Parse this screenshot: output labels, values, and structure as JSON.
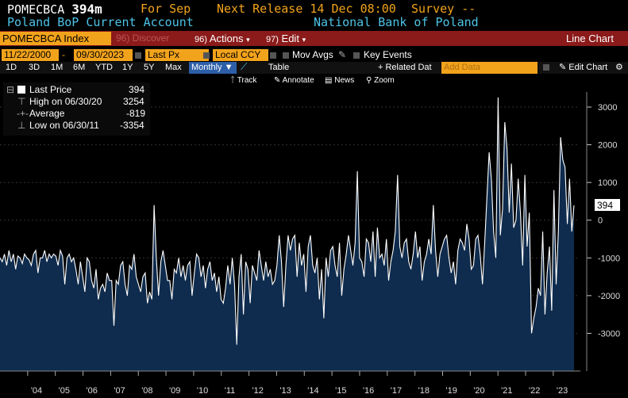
{
  "header": {
    "ticker": "POMECBCA",
    "value": "394m",
    "for_label": "For Sep",
    "next_release": "Next Release 14 Dec 08:00",
    "survey": "Survey --",
    "title": "Poland BoP Current Account",
    "source": "National Bank of Poland"
  },
  "toolbar": {
    "security": "POMECBCA Index",
    "discover": "96) Discover",
    "actions_num": "96)",
    "actions": "Actions",
    "edit_num": "97)",
    "edit": "Edit",
    "chart_type": "Line Chart"
  },
  "range": {
    "start": "11/22/2000",
    "end": "09/30/2023",
    "field": "Last Px",
    "currency": "Local CCY",
    "mov_avgs": "Mov Avgs",
    "key_events": "Key Events"
  },
  "periods": [
    "1D",
    "3D",
    "1M",
    "6M",
    "YTD",
    "1Y",
    "5Y",
    "Max"
  ],
  "frequency": "Monthly",
  "table_label": "Table",
  "related_data": "+ Related Dat",
  "add_data_placeholder": "Add Data",
  "edit_chart": "Edit Chart",
  "tools": {
    "track": "Track",
    "annotate": "Annotate",
    "news": "News",
    "zoom": "Zoom"
  },
  "legend": {
    "last_label": "Last Price",
    "last_value": "394",
    "high_label": "High on 06/30/20",
    "high_value": "3254",
    "avg_label": "Average",
    "avg_value": "-819",
    "low_label": "Low on 06/30/11",
    "low_value": "-3354"
  },
  "last_badge": "394",
  "colors": {
    "orange": "#f2a31c",
    "cyan": "#4cc3e6",
    "bar": "#8b1a1a",
    "area": "#0f2c4e"
  },
  "chart_data": {
    "type": "area",
    "x_labels": [
      "'04",
      "'05",
      "'06",
      "'07",
      "'08",
      "'09",
      "'10",
      "'11",
      "'12",
      "'13",
      "'14",
      "'15",
      "'16",
      "'17",
      "'18",
      "'19",
      "'20",
      "'21",
      "'22",
      "'23"
    ],
    "y_ticks": [
      3000,
      2000,
      1000,
      0,
      -1000,
      -2000,
      -3000
    ],
    "ylim": [
      -4000,
      3400
    ],
    "x_start": 2003.0,
    "x_end": 2023.75,
    "values": [
      -1000,
      -1100,
      -900,
      -1200,
      -800,
      -1100,
      -900,
      -1300,
      -950,
      -1000,
      -1150,
      -900,
      -1000,
      -1050,
      -1200,
      -900,
      -800,
      -1400,
      -1000,
      -1000,
      -800,
      -1100,
      -900,
      -1000,
      -900,
      -950,
      -1200,
      -800,
      -950,
      -1700,
      -1000,
      -900,
      -1100,
      -1000,
      -1300,
      -1700,
      -1100,
      -1500,
      -1900,
      -1000,
      -1100,
      -1600,
      -1800,
      -1300,
      -2100,
      -1800,
      -1700,
      -1900,
      -1400,
      -1600,
      -1600,
      -2800,
      -1600,
      -1700,
      -1200,
      -1100,
      -1700,
      -2000,
      -1200,
      -1300,
      -900,
      -1500,
      -1700,
      -1900,
      -1500,
      -1400,
      -2200,
      -1900,
      -2100,
      400,
      -1000,
      -2000,
      -1100,
      -800,
      -1200,
      -1600,
      -1600,
      -2100,
      -1300,
      -1400,
      -1000,
      -1500,
      -1200,
      -1600,
      -1200,
      -1100,
      -2000,
      -1400,
      -900,
      -1000,
      -1500,
      -1200,
      -1800,
      -1300,
      -1100,
      -1600,
      -1400,
      -1900,
      -1500,
      -2100,
      -2200,
      -1800,
      -1200,
      -1700,
      -1000,
      -1700,
      -3300,
      -1500,
      -900,
      -2500,
      -1100,
      -1300,
      -2200,
      -1200,
      -1400,
      -1600,
      -800,
      -1200,
      -1600,
      -1100,
      -1500,
      -1300,
      -1700,
      -1600,
      -1200,
      -400,
      -1100,
      -2300,
      -1200,
      -400,
      -800,
      -500,
      -400,
      -1500,
      -600,
      -1200,
      -900,
      -1900,
      -700,
      -400,
      -1200,
      -1400,
      -1000,
      -2100,
      -1300,
      -2600,
      -1000,
      -1500,
      -800,
      -700,
      -1200,
      -1500,
      -600,
      -2000,
      -1300,
      -900,
      -400,
      -800,
      -1200,
      -600,
      1300,
      -1000,
      -1100,
      -1500,
      -500,
      -600,
      -1100,
      -300,
      -1500,
      -200,
      -1000,
      -900,
      -1200,
      -500,
      -1600,
      -1100,
      -800,
      -300,
      1200,
      -700,
      -1000,
      -600,
      -500,
      -1100,
      -1300,
      -900,
      -300,
      -1000,
      -700,
      -1600,
      -1100,
      -900,
      -500,
      -900,
      400,
      -800,
      -1500,
      -900,
      -700,
      -500,
      -400,
      -1000,
      -1400,
      -1100,
      -1700,
      -800,
      -500,
      -600,
      -800,
      -100,
      -500,
      -1300,
      -1200,
      -500,
      -400,
      -900,
      -1700,
      -600,
      600,
      1800,
      1100,
      -300,
      -1000,
      3254,
      -400,
      300,
      2600,
      1900,
      200,
      1500,
      -200,
      0,
      1100,
      200,
      -1200,
      1200,
      -700,
      200,
      -3000,
      -2600,
      -2300,
      -1800,
      -2000,
      -300,
      -2500,
      -1400,
      -700,
      -2400,
      800,
      -1700,
      -300,
      2200,
      1600,
      1400,
      -100,
      1100,
      -300,
      394
    ]
  }
}
